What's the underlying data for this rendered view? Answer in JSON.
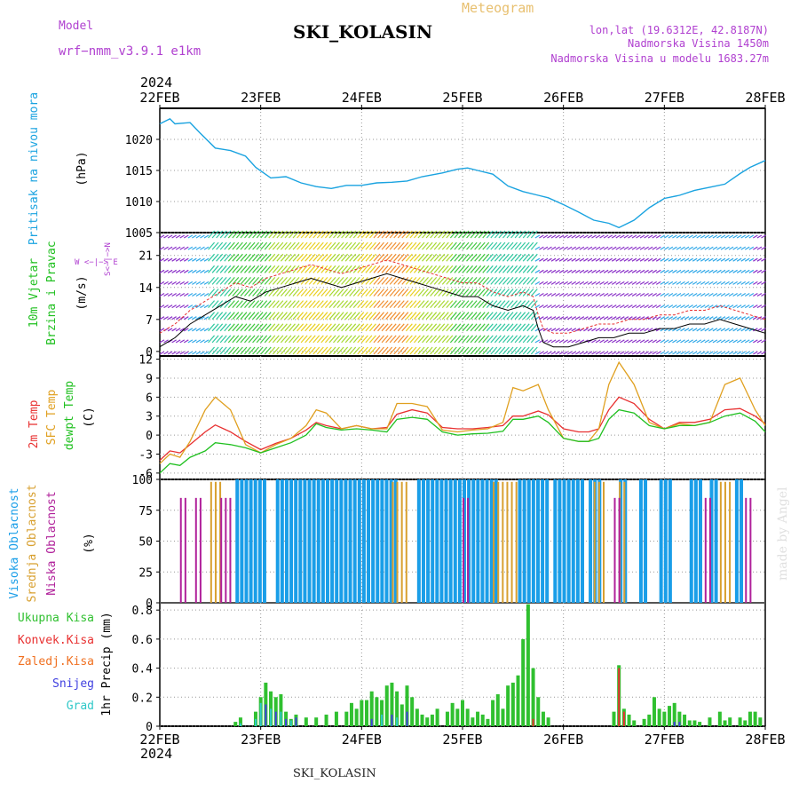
{
  "header": {
    "model_label": "Model",
    "model_value": "wrf−nmm_v3.9.1  e1km",
    "station": "SKI_KOLASIN",
    "meteogram_label": "Meteogram",
    "lonlat": "lon,lat (19.6312E, 42.8187N)",
    "elevation": "Nadmorska Visina 1450m",
    "model_elevation": "Nadmorska Visina u modelu 1683.27m",
    "year": "2024"
  },
  "footer": {
    "year": "2024",
    "station": "SKI_KOLASIN",
    "watermark": "made by Angel"
  },
  "time_axis": {
    "labels": [
      "22FEB",
      "23FEB",
      "24FEB",
      "25FEB",
      "26FEB",
      "27FEB",
      "28FEB"
    ]
  },
  "colors": {
    "pressure": "#1aa3e0",
    "temp2m": "#e83030",
    "sfc_temp": "#e0a020",
    "dewpt": "#20c020",
    "high_cloud": "#1a9ee8",
    "mid_cloud": "#d8a030",
    "low_cloud": "#b0209a",
    "total_precip": "#30c030",
    "conv_precip": "#e83030",
    "frz_precip": "#f07020",
    "snow": "#4040e0",
    "graupel": "#30c8c8"
  },
  "panels": {
    "pressure": {
      "ylabel_name": "Pritisak na nivou mora",
      "ylabel_unit": "(hPa)"
    },
    "wind": {
      "ylabel_name1": "10m Vjetar",
      "ylabel_name2": "Brzina i Pravac",
      "ylabel_unit": "(m/s)",
      "dir_label": "W  <−|−>  E",
      "dir_label2": "S<−|−>N"
    },
    "temperature": {
      "label_2m": "2m Temp",
      "label_sfc": "SFC Temp",
      "label_dewpt1": "dewpt Temp",
      "ylabel_unit": "(C)"
    },
    "cloud": {
      "label_high": "Visoka Oblacnost",
      "label_mid": "Srednja Oblacnost",
      "label_low": "Niska Oblacnost",
      "ylabel_unit": "(%)"
    },
    "precip": {
      "label_total": "Ukupna Kisa",
      "label_conv": "Konvek.Kisa",
      "label_frz": "Zaledj.Kisa",
      "label_snow": "Snijeg",
      "label_graupel": "Grad",
      "ylabel": "1hr Precip (mm)"
    }
  },
  "chart_data": [
    {
      "type": "line",
      "name": "pressure",
      "ylim": [
        1005,
        1025
      ],
      "yticks": [
        1005,
        1010,
        1015,
        1020
      ],
      "days": [
        0.0,
        0.1,
        0.15,
        0.3,
        0.4,
        0.55,
        0.7,
        0.85,
        0.95,
        1.1,
        1.25,
        1.4,
        1.55,
        1.7,
        1.85,
        2.0,
        2.15,
        2.3,
        2.45,
        2.6,
        2.8,
        2.95,
        3.05,
        3.15,
        3.3,
        3.45,
        3.6,
        3.75,
        3.85,
        4.0,
        4.15,
        4.3,
        4.45,
        4.55,
        4.7,
        4.85,
        5.0,
        5.15,
        5.3,
        5.45,
        5.6,
        5.75,
        5.85,
        6.0
      ],
      "values": [
        1022.5,
        1023.3,
        1022.5,
        1022.7,
        1021.0,
        1018.6,
        1018.2,
        1017.3,
        1015.5,
        1013.8,
        1014.0,
        1013.0,
        1012.4,
        1012.1,
        1012.6,
        1012.6,
        1013.0,
        1013.1,
        1013.3,
        1014.0,
        1014.6,
        1015.2,
        1015.4,
        1015.0,
        1014.4,
        1012.5,
        1011.6,
        1011.0,
        1010.6,
        1009.5,
        1008.3,
        1007.0,
        1006.5,
        1005.8,
        1007.0,
        1009.0,
        1010.5,
        1011.0,
        1011.8,
        1012.3,
        1012.8,
        1014.5,
        1015.5,
        1016.6
      ]
    },
    {
      "type": "line",
      "name": "wind_speed",
      "ylim": [
        -1,
        26
      ],
      "yticks": [
        0,
        7,
        14,
        21
      ],
      "days": [
        0.0,
        0.15,
        0.3,
        0.45,
        0.6,
        0.75,
        0.9,
        1.05,
        1.2,
        1.35,
        1.5,
        1.65,
        1.8,
        1.95,
        2.1,
        2.25,
        2.4,
        2.55,
        2.7,
        2.85,
        3.0,
        3.15,
        3.3,
        3.45,
        3.6,
        3.7,
        3.75,
        3.8,
        3.9,
        4.05,
        4.2,
        4.35,
        4.5,
        4.65,
        4.8,
        4.95,
        5.1,
        5.25,
        5.4,
        5.55,
        5.7,
        5.85,
        6.0
      ],
      "values": [
        1,
        3,
        6,
        8,
        10,
        12,
        11,
        13,
        14,
        15,
        16,
        15,
        14,
        15,
        16,
        17,
        16,
        15,
        14,
        13,
        12,
        12,
        10,
        9,
        10,
        9,
        5,
        2,
        1,
        1,
        2,
        3,
        3,
        4,
        4,
        5,
        5,
        6,
        6,
        7,
        6,
        5,
        4
      ]
    },
    {
      "type": "line",
      "name": "temperature",
      "ylim": [
        -7,
        12.5
      ],
      "yticks": [
        -6,
        -3,
        0,
        3,
        6,
        9,
        12
      ],
      "series": [
        {
          "name": "2m Temp",
          "days": [
            0.0,
            0.1,
            0.2,
            0.3,
            0.45,
            0.55,
            0.7,
            0.85,
            1.0,
            1.15,
            1.3,
            1.45,
            1.55,
            1.65,
            1.8,
            1.95,
            2.1,
            2.25,
            2.35,
            2.5,
            2.65,
            2.8,
            2.95,
            3.1,
            3.25,
            3.4,
            3.5,
            3.6,
            3.75,
            3.85,
            4.0,
            4.15,
            4.25,
            4.35,
            4.45,
            4.55,
            4.7,
            4.85,
            5.0,
            5.15,
            5.3,
            5.45,
            5.6,
            5.75,
            5.9,
            6.0
          ],
          "values": [
            -4.0,
            -2.5,
            -2.8,
            -1.5,
            0.5,
            1.6,
            0.5,
            -1.0,
            -2.3,
            -1.3,
            -0.5,
            0.8,
            2.0,
            1.5,
            1.0,
            1.5,
            1.0,
            1.2,
            3.3,
            4.0,
            3.5,
            1.2,
            1.0,
            1.0,
            1.2,
            1.5,
            3.0,
            3.0,
            3.8,
            3.2,
            1.0,
            0.5,
            0.5,
            1.0,
            4.0,
            6.0,
            5.0,
            2.5,
            1.0,
            2.0,
            2.0,
            2.5,
            4.0,
            4.2,
            3.0,
            1.8
          ]
        },
        {
          "name": "SFC Temp",
          "days": [
            0.0,
            0.1,
            0.2,
            0.3,
            0.45,
            0.55,
            0.7,
            0.85,
            1.0,
            1.15,
            1.3,
            1.45,
            1.55,
            1.65,
            1.8,
            1.95,
            2.1,
            2.25,
            2.35,
            2.5,
            2.65,
            2.8,
            2.95,
            3.1,
            3.25,
            3.4,
            3.5,
            3.6,
            3.75,
            3.85,
            4.0,
            4.15,
            4.25,
            4.35,
            4.45,
            4.55,
            4.7,
            4.85,
            5.0,
            5.15,
            5.3,
            5.45,
            5.6,
            5.75,
            5.9,
            6.0
          ],
          "values": [
            -4.5,
            -3.0,
            -3.5,
            -1.0,
            4.0,
            6.0,
            4.0,
            -1.5,
            -2.8,
            -1.5,
            -0.5,
            1.5,
            4.0,
            3.5,
            1.0,
            1.5,
            1.0,
            1.0,
            5.0,
            5.0,
            4.5,
            0.8,
            0.5,
            0.8,
            1.0,
            2.0,
            7.5,
            7.0,
            8.0,
            4.0,
            -0.5,
            -1.0,
            -1.0,
            1.0,
            8.0,
            11.5,
            8.0,
            2.0,
            1.0,
            1.8,
            1.5,
            2.0,
            8.0,
            9.0,
            4.0,
            1.5
          ]
        },
        {
          "name": "dewpt Temp",
          "days": [
            0.0,
            0.1,
            0.2,
            0.3,
            0.45,
            0.55,
            0.7,
            0.85,
            1.0,
            1.15,
            1.3,
            1.45,
            1.55,
            1.65,
            1.8,
            1.95,
            2.1,
            2.25,
            2.35,
            2.5,
            2.65,
            2.8,
            2.95,
            3.1,
            3.25,
            3.4,
            3.5,
            3.6,
            3.75,
            3.85,
            4.0,
            4.15,
            4.25,
            4.35,
            4.45,
            4.55,
            4.7,
            4.85,
            5.0,
            5.15,
            5.3,
            5.45,
            5.6,
            5.75,
            5.9,
            6.0
          ],
          "values": [
            -6.0,
            -4.5,
            -4.8,
            -3.5,
            -2.5,
            -1.2,
            -1.5,
            -2.0,
            -2.8,
            -2.0,
            -1.2,
            0.0,
            1.8,
            1.2,
            0.8,
            1.0,
            0.8,
            0.5,
            2.5,
            2.8,
            2.5,
            0.5,
            0.0,
            0.2,
            0.3,
            0.6,
            2.5,
            2.5,
            3.0,
            2.0,
            -0.5,
            -1.0,
            -1.0,
            -0.5,
            2.5,
            4.0,
            3.5,
            1.5,
            1.0,
            1.5,
            1.5,
            2.0,
            3.0,
            3.5,
            2.2,
            0.5
          ]
        }
      ]
    },
    {
      "type": "bar",
      "name": "cloud_cover",
      "ylim": [
        0,
        100
      ],
      "yticks": [
        0,
        25,
        50,
        75,
        100
      ],
      "series": [
        {
          "name": "Visoka Oblacnost",
          "spans": [
            [
              0.75,
              1.05
            ],
            [
              1.15,
              2.35
            ],
            [
              2.55,
              3.35
            ],
            [
              3.55,
              3.85
            ],
            [
              3.9,
              4.2
            ],
            [
              4.25,
              4.35
            ],
            [
              4.55,
              4.6
            ],
            [
              4.75,
              4.8
            ],
            [
              4.95,
              5.05
            ],
            [
              5.25,
              5.35
            ],
            [
              5.45,
              5.5
            ],
            [
              5.7,
              5.75
            ]
          ],
          "value": 100
        },
        {
          "name": "Srednja Oblacnost",
          "spans": [
            [
              0.5,
              0.6
            ],
            [
              2.3,
              2.45
            ],
            [
              3.3,
              3.55
            ],
            [
              4.3,
              4.4
            ],
            [
              4.55,
              4.6
            ],
            [
              5.55,
              5.65
            ]
          ],
          "value": 98
        },
        {
          "name": "Niska Oblacnost",
          "spans": [
            [
              0.2,
              0.25
            ],
            [
              0.35,
              0.4
            ],
            [
              0.6,
              0.7
            ],
            [
              3.0,
              3.05
            ],
            [
              4.5,
              4.55
            ],
            [
              5.4,
              5.45
            ],
            [
              5.8,
              5.85
            ]
          ],
          "value": 85
        }
      ]
    },
    {
      "type": "bar",
      "name": "precipitation",
      "ylim": [
        0,
        0.85
      ],
      "yticks": [
        0,
        0.2,
        0.4,
        0.6,
        0.8
      ],
      "series": [
        {
          "name": "Ukupna Kisa",
          "days": [
            0.75,
            0.8,
            0.95,
            1.0,
            1.05,
            1.1,
            1.15,
            1.2,
            1.25,
            1.3,
            1.35,
            1.45,
            1.55,
            1.65,
            1.75,
            1.85,
            1.9,
            1.95,
            2.0,
            2.05,
            2.1,
            2.15,
            2.2,
            2.25,
            2.3,
            2.35,
            2.4,
            2.45,
            2.5,
            2.55,
            2.6,
            2.65,
            2.7,
            2.75,
            2.85,
            2.9,
            2.95,
            3.0,
            3.05,
            3.1,
            3.15,
            3.2,
            3.25,
            3.3,
            3.35,
            3.4,
            3.45,
            3.5,
            3.55,
            3.6,
            3.65,
            3.7,
            3.75,
            3.8,
            3.85,
            4.5,
            4.55,
            4.6,
            4.65,
            4.7,
            4.8,
            4.85,
            4.9,
            4.95,
            5.0,
            5.05,
            5.1,
            5.15,
            5.2,
            5.25,
            5.3,
            5.35,
            5.45,
            5.55,
            5.6,
            5.65,
            5.75,
            5.8,
            5.85,
            5.9,
            5.95
          ],
          "values": [
            0.03,
            0.06,
            0.1,
            0.2,
            0.3,
            0.24,
            0.2,
            0.22,
            0.1,
            0.05,
            0.08,
            0.06,
            0.06,
            0.08,
            0.1,
            0.1,
            0.16,
            0.12,
            0.18,
            0.18,
            0.24,
            0.2,
            0.18,
            0.28,
            0.3,
            0.24,
            0.15,
            0.28,
            0.2,
            0.12,
            0.08,
            0.06,
            0.08,
            0.12,
            0.1,
            0.16,
            0.12,
            0.18,
            0.12,
            0.06,
            0.1,
            0.08,
            0.05,
            0.18,
            0.22,
            0.12,
            0.28,
            0.3,
            0.35,
            0.6,
            0.84,
            0.4,
            0.2,
            0.1,
            0.06,
            0.1,
            0.42,
            0.12,
            0.08,
            0.04,
            0.05,
            0.08,
            0.2,
            0.12,
            0.1,
            0.14,
            0.16,
            0.1,
            0.08,
            0.04,
            0.04,
            0.03,
            0.06,
            0.1,
            0.04,
            0.06,
            0.06,
            0.04,
            0.1,
            0.1,
            0.06
          ]
        },
        {
          "name": "Konvek.Kisa",
          "days": [
            4.55,
            4.6,
            3.7
          ],
          "values": [
            0.4,
            0.1,
            0.05
          ]
        },
        {
          "name": "Zaledj.Kisa",
          "days": [],
          "values": []
        },
        {
          "name": "Snijeg",
          "days": [
            1.0,
            1.05,
            1.15,
            1.25,
            1.35,
            2.1,
            2.3,
            2.45,
            5.1,
            5.15
          ],
          "values": [
            0.08,
            0.15,
            0.1,
            0.05,
            0.06,
            0.05,
            0.08,
            0.1,
            0.03,
            0.03
          ]
        },
        {
          "name": "Grad",
          "days": [
            0.8,
            0.95,
            1.0,
            1.1,
            1.2,
            1.3,
            2.2,
            2.35
          ],
          "values": [
            0.02,
            0.05,
            0.16,
            0.12,
            0.1,
            0.04,
            0.08,
            0.06
          ]
        }
      ]
    }
  ]
}
